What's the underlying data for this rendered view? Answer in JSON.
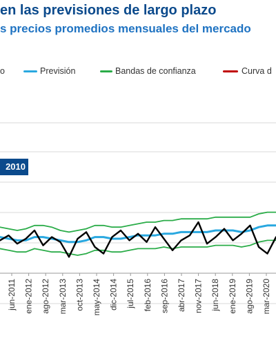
{
  "header": {
    "title": "en las previsiones de largo plazo",
    "subtitle": "s precios promedios mensuales del mercado"
  },
  "legend": {
    "items": [
      {
        "label": "o",
        "color": "#000000"
      },
      {
        "label": "Previsión",
        "color": "#29a8e0"
      },
      {
        "label": "Bandas de confianza",
        "color": "#2aac48"
      },
      {
        "label": "Curva d",
        "color": "#c00000"
      }
    ]
  },
  "annotation": {
    "label": "2010"
  },
  "chart_data": {
    "type": "line",
    "x_tick_labels": [
      "jun-2011",
      "ene-2012",
      "ago-2012",
      "mar-2013",
      "oct-2013",
      "may-2014",
      "dic-2014",
      "jul-2015",
      "feb-2016",
      "sep-2016",
      "abr-2017",
      "nov-2017",
      "jun-2018",
      "ene-2019",
      "ago-2019",
      "mar-2020",
      "oct-2020"
    ],
    "grid": true,
    "series": [
      {
        "name": "Previsión",
        "color": "#29a8e0",
        "values": [
          0.46,
          0.45,
          0.44,
          0.44,
          0.46,
          0.46,
          0.45,
          0.44,
          0.43,
          0.43,
          0.44,
          0.46,
          0.46,
          0.45,
          0.45,
          0.46,
          0.47,
          0.47,
          0.47,
          0.48,
          0.48,
          0.49,
          0.49,
          0.49,
          0.49,
          0.5,
          0.5,
          0.5,
          0.49,
          0.5,
          0.52,
          0.53,
          0.53
        ]
      },
      {
        "name": "Bandas de confianza",
        "color": "#2aac48",
        "values": [
          0.52,
          0.51,
          0.5,
          0.51,
          0.53,
          0.53,
          0.52,
          0.5,
          0.49,
          0.5,
          0.51,
          0.53,
          0.53,
          0.52,
          0.52,
          0.53,
          0.54,
          0.55,
          0.55,
          0.56,
          0.56,
          0.57,
          0.57,
          0.57,
          0.57,
          0.58,
          0.58,
          0.58,
          0.58,
          0.58,
          0.6,
          0.61,
          0.61
        ]
      },
      {
        "name": "Bandas de confianza",
        "color": "#2aac48",
        "values": [
          0.39,
          0.38,
          0.37,
          0.37,
          0.39,
          0.38,
          0.37,
          0.37,
          0.36,
          0.35,
          0.36,
          0.38,
          0.38,
          0.37,
          0.37,
          0.38,
          0.39,
          0.39,
          0.39,
          0.4,
          0.39,
          0.4,
          0.4,
          0.4,
          0.4,
          0.41,
          0.41,
          0.41,
          0.4,
          0.41,
          0.43,
          0.44,
          0.44
        ]
      },
      {
        "name": "",
        "color": "#000000",
        "values": [
          0.44,
          0.47,
          0.42,
          0.45,
          0.5,
          0.41,
          0.46,
          0.43,
          0.34,
          0.45,
          0.49,
          0.4,
          0.36,
          0.46,
          0.5,
          0.44,
          0.48,
          0.43,
          0.52,
          0.45,
          0.38,
          0.44,
          0.47,
          0.55,
          0.42,
          0.46,
          0.51,
          0.44,
          0.48,
          0.53,
          0.4,
          0.36,
          0.46
        ]
      }
    ]
  }
}
